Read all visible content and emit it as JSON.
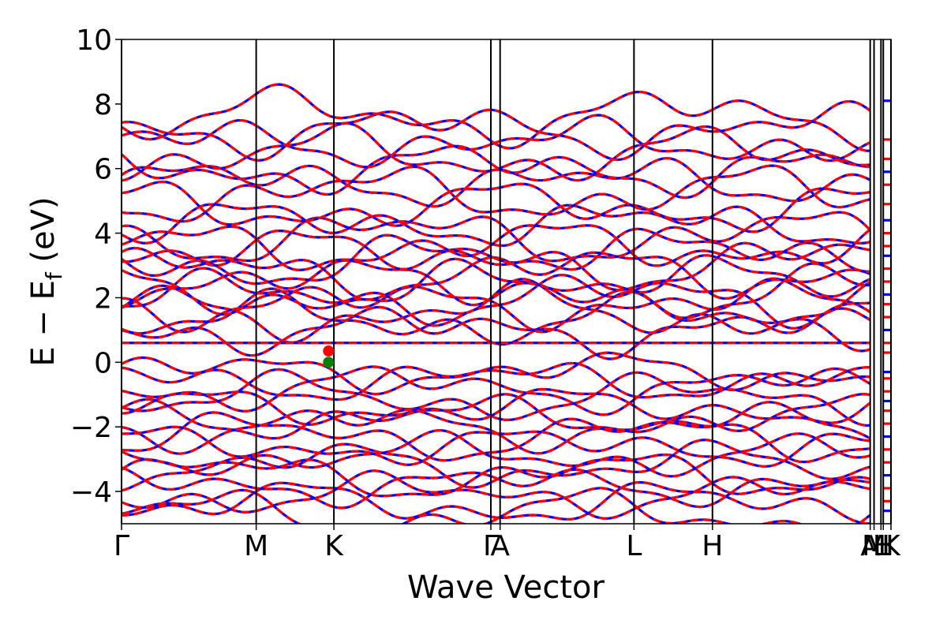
{
  "chart_data": {
    "type": "line",
    "xlabel": "Wave Vector",
    "ylabel_parts": [
      "E − E",
      "f",
      " (eV)"
    ],
    "ylim": [
      -5,
      10
    ],
    "yticks": [
      {
        "value": 10,
        "label": "10"
      },
      {
        "value": 8,
        "label": "8"
      },
      {
        "value": 6,
        "label": "6"
      },
      {
        "value": 4,
        "label": "4"
      },
      {
        "value": 2,
        "label": "2"
      },
      {
        "value": 0,
        "label": "0"
      },
      {
        "value": -2,
        "label": "−2"
      },
      {
        "value": -4,
        "label": "−4"
      }
    ],
    "xlim": [
      0,
      1
    ],
    "kpoints": [
      {
        "label": "Γ",
        "x": 0.0
      },
      {
        "label": "M",
        "x": 0.175
      },
      {
        "label": "K",
        "x": 0.276
      },
      {
        "label": "Γ",
        "x": 0.48
      },
      {
        "label": "A",
        "x": 0.492
      },
      {
        "label": "L",
        "x": 0.666
      },
      {
        "label": "H",
        "x": 0.768
      },
      {
        "label": "A",
        "x": 0.973
      },
      {
        "label": "M",
        "x": 0.978
      },
      {
        "label": "L",
        "x": 0.987
      },
      {
        "label": "H",
        "x": 0.99
      },
      {
        "label": "K",
        "x": 1.0
      }
    ],
    "series": [
      {
        "style": "spin-up",
        "color": "#0000ff",
        "dash": "solid"
      },
      {
        "style": "spin-down",
        "color": "#ff0000",
        "dash": "dashed"
      }
    ],
    "flat_band_energy": 0.6,
    "markers": [
      {
        "x": 0.269,
        "y": 0.35,
        "color": "#ff0000"
      },
      {
        "x": 0.269,
        "y": 0.0,
        "color": "#008000"
      }
    ]
  }
}
